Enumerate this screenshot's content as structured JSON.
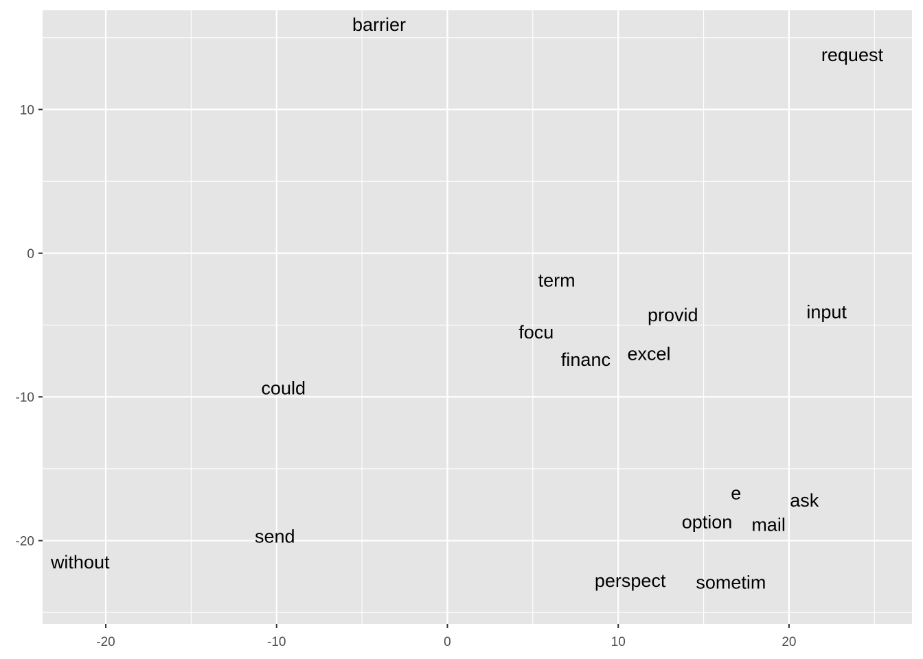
{
  "chart_data": {
    "type": "scatter",
    "title": "",
    "xlabel": "",
    "ylabel": "",
    "xlim": [
      -23.7,
      27.2
    ],
    "ylim": [
      -25.8,
      16.9
    ],
    "x_ticks": [
      -20,
      -10,
      0,
      10,
      20
    ],
    "x_tick_labels": [
      "-20",
      "-10",
      "0",
      "10",
      "20"
    ],
    "y_ticks": [
      -20,
      -10,
      0,
      10
    ],
    "y_tick_labels": [
      "-20",
      "-10",
      "0",
      "10"
    ],
    "x_minor": [
      -15,
      -5,
      5,
      15,
      25
    ],
    "y_minor": [
      -25,
      -15,
      -5,
      5,
      15
    ],
    "grid": true,
    "background": "#e5e5e5",
    "grid_color": "#ffffff",
    "points": [
      {
        "label": "barrier",
        "x": -4.0,
        "y": 15.9
      },
      {
        "label": "request",
        "x": 23.7,
        "y": 13.8
      },
      {
        "label": "term",
        "x": 6.4,
        "y": -1.9
      },
      {
        "label": "provid",
        "x": 13.2,
        "y": -4.3
      },
      {
        "label": "input",
        "x": 22.2,
        "y": -4.1
      },
      {
        "label": "focu",
        "x": 5.2,
        "y": -5.5
      },
      {
        "label": "financ",
        "x": 8.1,
        "y": -7.4
      },
      {
        "label": "excel",
        "x": 11.8,
        "y": -7.0
      },
      {
        "label": "could",
        "x": -9.6,
        "y": -9.4
      },
      {
        "label": "e",
        "x": 16.9,
        "y": -16.7
      },
      {
        "label": "ask",
        "x": 20.9,
        "y": -17.2
      },
      {
        "label": "option",
        "x": 15.2,
        "y": -18.7
      },
      {
        "label": "mail",
        "x": 18.8,
        "y": -18.9
      },
      {
        "label": "send",
        "x": -10.1,
        "y": -19.7
      },
      {
        "label": "without",
        "x": -21.5,
        "y": -21.5
      },
      {
        "label": "perspect",
        "x": 10.7,
        "y": -22.8
      },
      {
        "label": "sometim",
        "x": 16.6,
        "y": -22.9
      }
    ]
  }
}
